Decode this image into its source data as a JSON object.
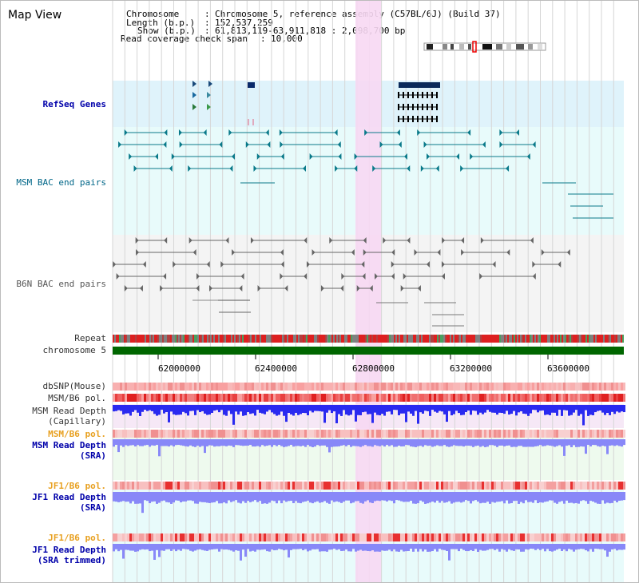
{
  "view_title": "Map View",
  "info": {
    "chromosome_key": "Chromosome",
    "chromosome_val": "Chromosome 5, reference assembly (C57BL/6J) (Build 37)",
    "length_key": "Length (b.p.)",
    "length_val": "152,537,259",
    "show_key": "Show (b.p.)",
    "show_val": "61,813,119-63,911,818 : 2,098,700 bp",
    "coverage_key": "Read coverage check span",
    "coverage_val": "10,000"
  },
  "tracks": {
    "refseq": "RefSeq Genes",
    "msm_bac": "MSM BAC end pairs",
    "b6n_bac": "B6N BAC end pairs",
    "repeat": "Repeat",
    "chromosome": "chromosome 5",
    "dbsnp": "dbSNP(Mouse)",
    "msm_b6_pol": "MSM/B6 pol.",
    "msm_depth_cap_1": "MSM Read Depth",
    "msm_depth_cap_2": "(Capillary)",
    "msm_b6_pol_2": "MSM/B6 pol.",
    "msm_depth_sra_1": "MSM Read Depth",
    "msm_depth_sra_2": "(SRA)",
    "jf1_b6_pol": "JF1/B6 pol.",
    "jf1_depth_sra_1": "JF1 Read Depth",
    "jf1_depth_sra_2": "(SRA)",
    "jf1_b6_pol_2": "JF1/B6 pol.",
    "jf1_depth_trim_1": "JF1 Read Depth",
    "jf1_depth_trim_2": "(SRA trimmed)"
  },
  "axis_ticks": [
    "62000000",
    "62400000",
    "62800000",
    "63200000",
    "63600000"
  ],
  "colors": {
    "refseq_bg": "#dff3fb",
    "msm_bac_bg": "#e8fbfb",
    "b6n_bg": "#f4f4f4",
    "highlight": "#f7d8f3",
    "chromosome": "#006600",
    "depth_blue": "#2a2af0",
    "depth_light": "#8888f8"
  }
}
